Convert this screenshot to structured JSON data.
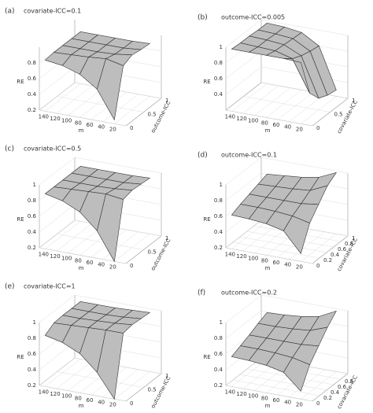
{
  "chart_data": [
    {
      "type": "surface",
      "panel_label": "(a)",
      "title": "covariate-ICC=0.1",
      "xlabel": "m",
      "ylabel": "outcome-ICC",
      "zlabel": "RE",
      "color": "#bdbdbd",
      "x": [
        20,
        50,
        80,
        110,
        140
      ],
      "y": [
        0,
        0.25,
        0.5,
        0.75,
        1
      ],
      "z": [
        [
          0.25,
          0.6,
          0.75,
          0.82,
          0.85
        ],
        [
          0.85,
          0.9,
          0.88,
          0.87,
          0.86
        ],
        [
          0.9,
          0.87,
          0.86,
          0.86,
          0.86
        ],
        [
          0.88,
          0.86,
          0.86,
          0.86,
          0.86
        ],
        [
          0.87,
          0.86,
          0.86,
          0.86,
          0.86
        ]
      ],
      "xlim": [
        0,
        150
      ],
      "ylim": [
        0,
        1
      ],
      "zlim": [
        0.2,
        1
      ],
      "xticks": [
        20,
        40,
        60,
        80,
        100,
        120,
        140
      ],
      "yticks": [
        0,
        0.5,
        1
      ],
      "zticks": [
        0.2,
        0.4,
        0.6,
        0.8
      ]
    },
    {
      "type": "surface",
      "panel_label": "(b)",
      "title": "outcome-ICC=0.005",
      "xlabel": "m",
      "ylabel": "covariate-ICC",
      "zlabel": "RE",
      "color": "#bdbdbd",
      "x": [
        20,
        50,
        80,
        110,
        140
      ],
      "y": [
        0,
        0.25,
        0.5,
        0.75,
        1
      ],
      "z": [
        [
          0.98,
          0.99,
          0.99,
          0.99,
          0.99
        ],
        [
          0.5,
          0.9,
          0.96,
          0.97,
          0.98
        ],
        [
          0.35,
          0.85,
          0.95,
          0.97,
          0.98
        ],
        [
          0.3,
          0.82,
          0.94,
          0.96,
          0.97
        ],
        [
          0.28,
          0.8,
          0.93,
          0.96,
          0.97
        ]
      ],
      "xlim": [
        0,
        150
      ],
      "ylim": [
        0,
        1
      ],
      "zlim": [
        0.2,
        1
      ],
      "xticks": [
        20,
        40,
        60,
        80,
        100,
        120,
        140
      ],
      "yticks": [
        0,
        0.5,
        1
      ],
      "zticks": [
        0.4,
        0.6,
        0.8,
        1
      ]
    },
    {
      "type": "surface",
      "panel_label": "(c)",
      "title": "covariate-ICC=0.5",
      "xlabel": "m",
      "ylabel": "outcome-ICC",
      "zlabel": "RE",
      "color": "#bdbdbd",
      "x": [
        20,
        50,
        80,
        110,
        140
      ],
      "y": [
        0,
        0.25,
        0.5,
        0.75,
        1
      ],
      "z": [
        [
          0.2,
          0.55,
          0.75,
          0.85,
          0.9
        ],
        [
          0.9,
          0.93,
          0.92,
          0.91,
          0.9
        ],
        [
          0.93,
          0.91,
          0.9,
          0.9,
          0.9
        ],
        [
          0.92,
          0.9,
          0.9,
          0.9,
          0.9
        ],
        [
          0.91,
          0.9,
          0.9,
          0.9,
          0.9
        ]
      ],
      "xlim": [
        0,
        150
      ],
      "ylim": [
        0,
        1
      ],
      "zlim": [
        0.2,
        1
      ],
      "xticks": [
        20,
        40,
        60,
        80,
        100,
        120,
        140
      ],
      "yticks": [
        0,
        0.5,
        1
      ],
      "zticks": [
        0.2,
        0.4,
        0.6,
        0.8,
        1
      ]
    },
    {
      "type": "surface",
      "panel_label": "(d)",
      "title": "outcome-ICC=0.1",
      "xlabel": "m",
      "ylabel": "covariate-ICC",
      "zlabel": "RE",
      "color": "#bdbdbd",
      "x": [
        20,
        50,
        80,
        110,
        140
      ],
      "y": [
        0,
        0.25,
        0.5,
        0.75,
        1
      ],
      "z": [
        [
          0.3,
          0.55,
          0.6,
          0.62,
          0.63
        ],
        [
          0.6,
          0.65,
          0.67,
          0.68,
          0.68
        ],
        [
          0.75,
          0.72,
          0.72,
          0.72,
          0.72
        ],
        [
          0.9,
          0.8,
          0.78,
          0.77,
          0.76
        ],
        [
          0.98,
          0.88,
          0.84,
          0.82,
          0.8
        ]
      ],
      "xlim": [
        0,
        150
      ],
      "ylim": [
        0,
        1
      ],
      "zlim": [
        0.2,
        1
      ],
      "xticks": [
        20,
        40,
        60,
        80,
        100,
        120,
        140
      ],
      "yticks": [
        0,
        0.2,
        0.4,
        0.6,
        0.8,
        1
      ],
      "zticks": [
        0.2,
        0.4,
        0.6,
        0.8,
        1
      ]
    },
    {
      "type": "surface",
      "panel_label": "(e)",
      "title": "covariate-ICC=1",
      "xlabel": "m",
      "ylabel": "outcome-ICC",
      "zlabel": "RE",
      "color": "#bdbdbd",
      "x": [
        20,
        50,
        80,
        110,
        140
      ],
      "y": [
        0,
        0.25,
        0.5,
        0.75,
        1
      ],
      "z": [
        [
          0.2,
          0.5,
          0.7,
          0.8,
          0.85
        ],
        [
          0.95,
          0.95,
          0.94,
          0.93,
          0.92
        ],
        [
          0.97,
          0.95,
          0.94,
          0.93,
          0.93
        ],
        [
          0.96,
          0.94,
          0.93,
          0.93,
          0.93
        ],
        [
          0.95,
          0.94,
          0.93,
          0.93,
          0.93
        ]
      ],
      "xlim": [
        0,
        150
      ],
      "ylim": [
        0,
        1
      ],
      "zlim": [
        0.2,
        1
      ],
      "xticks": [
        20,
        40,
        60,
        80,
        100,
        120,
        140
      ],
      "yticks": [
        0,
        0.5,
        1
      ],
      "zticks": [
        0.2,
        0.4,
        0.6,
        0.8,
        1
      ]
    },
    {
      "type": "surface",
      "panel_label": "(f)",
      "title": "outcome-ICC=0.2",
      "xlabel": "m",
      "ylabel": "covariate-ICC",
      "zlabel": "RE",
      "color": "#bdbdbd",
      "x": [
        20,
        50,
        80,
        110,
        140
      ],
      "y": [
        0,
        0.25,
        0.5,
        0.75,
        1
      ],
      "z": [
        [
          0.3,
          0.5,
          0.55,
          0.57,
          0.58
        ],
        [
          0.55,
          0.6,
          0.62,
          0.63,
          0.63
        ],
        [
          0.7,
          0.68,
          0.68,
          0.68,
          0.68
        ],
        [
          0.85,
          0.77,
          0.75,
          0.74,
          0.74
        ],
        [
          0.97,
          0.86,
          0.82,
          0.8,
          0.79
        ]
      ],
      "xlim": [
        0,
        150
      ],
      "ylim": [
        0,
        1
      ],
      "zlim": [
        0.2,
        1
      ],
      "xticks": [
        20,
        40,
        60,
        80,
        100,
        120,
        140
      ],
      "yticks": [
        0,
        0.2,
        0.4,
        0.6,
        0.8
      ],
      "zticks": [
        0.2,
        0.4,
        0.6,
        0.8,
        1
      ]
    }
  ]
}
